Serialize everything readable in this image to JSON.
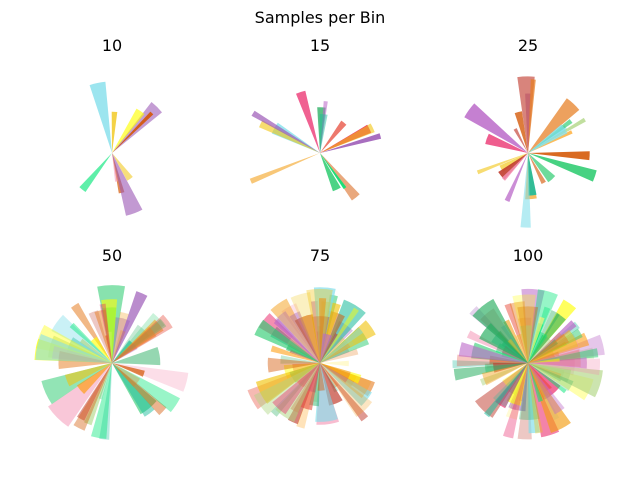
{
  "figure": {
    "suptitle": "Samples per Bin"
  },
  "palette": [
    "#9b59b6",
    "#f1c40f",
    "#e74c3c",
    "#2ecc71",
    "#1abc9c",
    "#e67e22",
    "#d35400",
    "#c0392b",
    "#f39c12",
    "#27ae60",
    "#ffff00",
    "#e91e63",
    "#00e676",
    "#ff9800",
    "#ba68c8",
    "#aed581",
    "#f48fb1",
    "#80deea",
    "#fff176"
  ],
  "chart_data": [
    {
      "type": "polar-bar",
      "title": "10",
      "samples": 10,
      "seed": 11
    },
    {
      "type": "polar-bar",
      "title": "15",
      "samples": 15,
      "seed": 23
    },
    {
      "type": "polar-bar",
      "title": "25",
      "samples": 25,
      "seed": 37
    },
    {
      "type": "polar-bar",
      "title": "50",
      "samples": 50,
      "seed": 41
    },
    {
      "type": "polar-bar",
      "title": "75",
      "samples": 75,
      "seed": 53
    },
    {
      "type": "polar-bar",
      "title": "100",
      "samples": 100,
      "seed": 67
    }
  ]
}
